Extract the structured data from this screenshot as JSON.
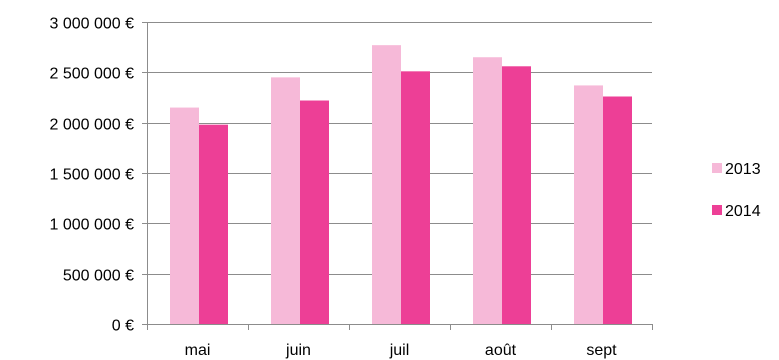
{
  "chart_data": {
    "type": "bar",
    "categories": [
      "mai",
      "juin",
      "juil",
      "août",
      "sept"
    ],
    "series": [
      {
        "name": "2013",
        "color": "#f6b9d8",
        "values": [
          2150000,
          2450000,
          2770000,
          2650000,
          2370000
        ]
      },
      {
        "name": "2014",
        "color": "#ed3f96",
        "values": [
          1980000,
          2220000,
          2510000,
          2560000,
          2260000
        ]
      }
    ],
    "ylim": [
      0,
      3000000
    ],
    "y_ticks": [
      0,
      500000,
      1000000,
      1500000,
      2000000,
      2500000,
      3000000
    ],
    "y_tick_labels": [
      "0 €",
      "500 000 €",
      "1 000 000 €",
      "1 500 000 €",
      "2 000 000 €",
      "2 500 000 €",
      "3 000 000 €"
    ],
    "grid": true,
    "legend_position": "right",
    "title": "",
    "xlabel": "",
    "ylabel": ""
  }
}
